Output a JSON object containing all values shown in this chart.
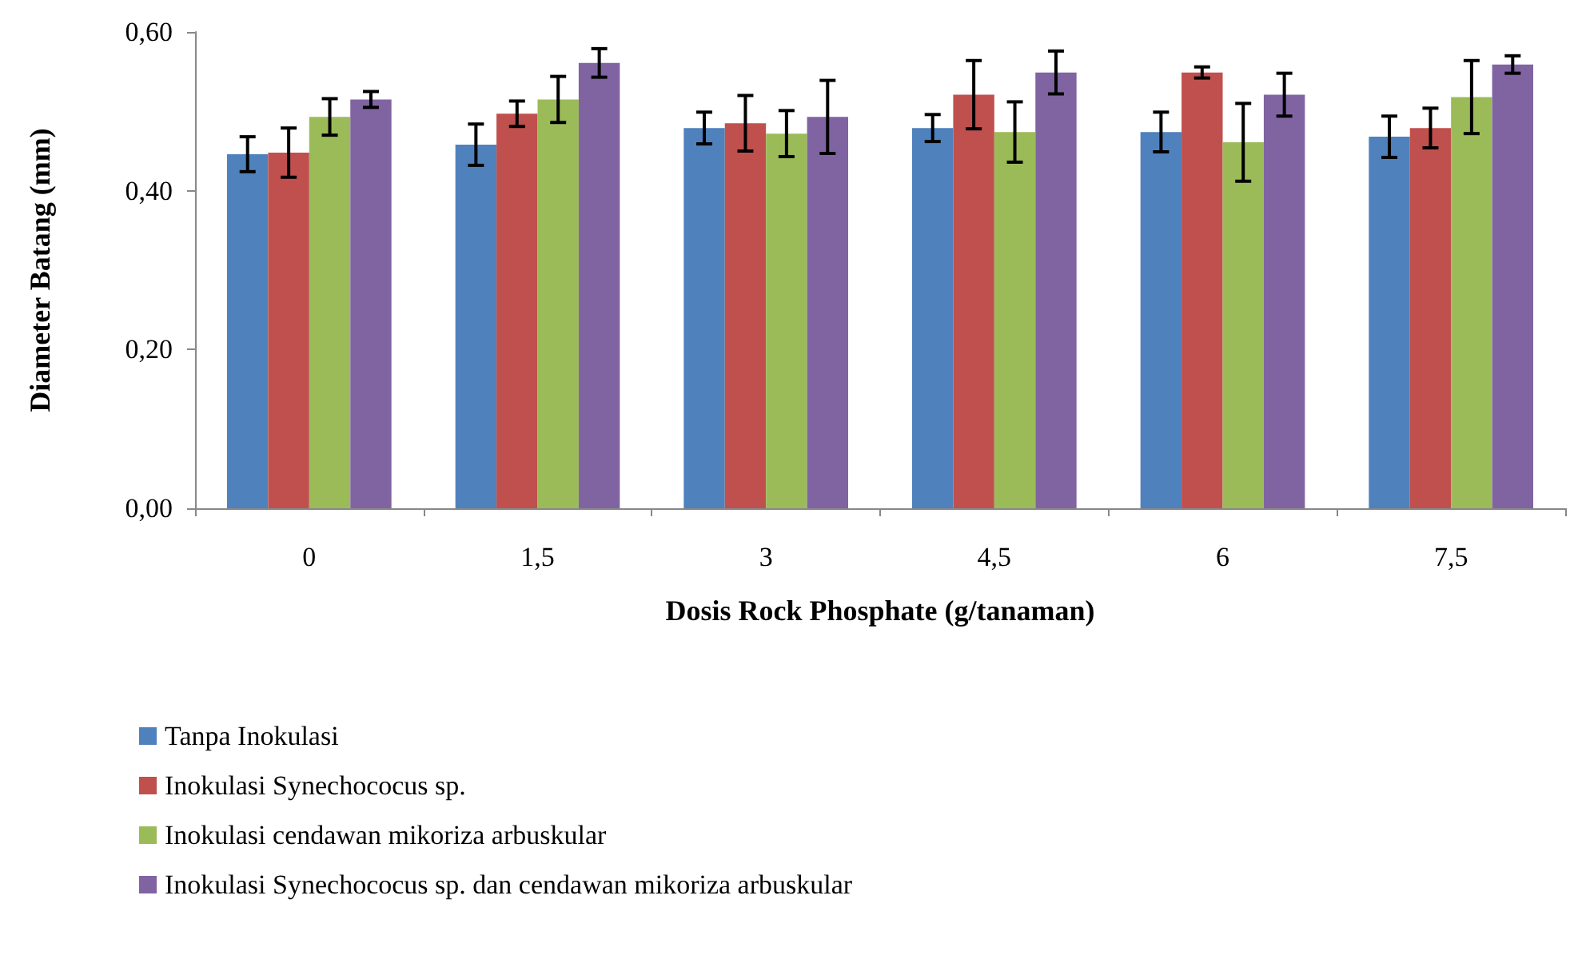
{
  "chart_data": {
    "type": "bar",
    "xlabel": "Dosis Rock Phosphate (g/tanaman)",
    "ylabel": "Diameter Batang (mm)",
    "categories": [
      "0",
      "1,5",
      "3",
      "4,5",
      "6",
      "7,5"
    ],
    "series": [
      {
        "name": "Tanpa Inokulasi",
        "color": "#4f81bd",
        "values": [
          0.446,
          0.458,
          0.479,
          0.479,
          0.474,
          0.468
        ],
        "errors": [
          0.022,
          0.026,
          0.02,
          0.017,
          0.025,
          0.026
        ]
      },
      {
        "name": "Inokulasi Synechococus sp.",
        "color": "#c0504d",
        "values": [
          0.448,
          0.497,
          0.485,
          0.521,
          0.549,
          0.479
        ],
        "errors": [
          0.031,
          0.016,
          0.035,
          0.043,
          0.007,
          0.025
        ]
      },
      {
        "name": "Inokulasi cendawan mikoriza arbuskular",
        "color": "#9bbb59",
        "values": [
          0.493,
          0.515,
          0.472,
          0.474,
          0.461,
          0.518
        ],
        "errors": [
          0.023,
          0.029,
          0.029,
          0.038,
          0.049,
          0.046
        ]
      },
      {
        "name": "Inokulasi Synechococus sp. dan cendawan mikoriza arbuskular",
        "color": "#8064a2",
        "values": [
          0.515,
          0.561,
          0.493,
          0.549,
          0.521,
          0.559
        ],
        "errors": [
          0.01,
          0.018,
          0.046,
          0.027,
          0.027,
          0.011
        ]
      }
    ],
    "ylim": [
      0,
      0.6
    ],
    "yticks": [
      {
        "value": 0,
        "label": "0,00"
      },
      {
        "value": 0.2,
        "label": "0,20"
      },
      {
        "value": 0.4,
        "label": "0,40"
      },
      {
        "value": 0.6,
        "label": "0,60"
      }
    ],
    "grid": false,
    "legend": "bottom left"
  }
}
